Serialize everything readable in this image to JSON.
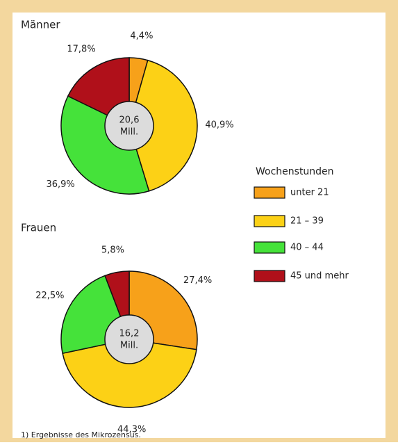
{
  "chart_data": [
    {
      "type": "pie",
      "title": "Männer",
      "categories": [
        "unter 21",
        "21 – 39",
        "40 – 44",
        "45 und mehr"
      ],
      "colors": [
        "#f7a11a",
        "#fcd116",
        "#45e23a",
        "#b0101a"
      ],
      "legend_title": "Wochenstunden",
      "values": [
        4.4,
        40.9,
        36.9,
        17.8
      ],
      "value_labels": [
        "4,4%",
        "40,9%",
        "36,9%",
        "17,8%"
      ],
      "center_text": [
        "20,6",
        "Mill."
      ]
    },
    {
      "type": "pie",
      "title": "Frauen",
      "values": [
        27.4,
        44.3,
        22.5,
        5.8
      ],
      "value_labels": [
        "27,4%",
        "44,3%",
        "22,5%",
        "5,8%"
      ],
      "center_text": [
        "16,2",
        "Mill."
      ]
    }
  ],
  "footnote": "1) Ergebnisse des Mikrozensus."
}
